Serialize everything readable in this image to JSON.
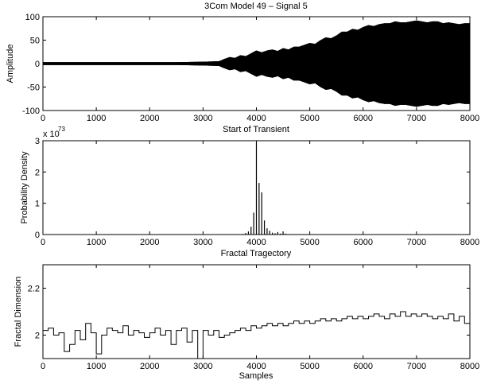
{
  "chart_data": [
    {
      "type": "line",
      "title": "3Com Model 49 – Signal 5",
      "xlabel": "Start of Transient",
      "ylabel": "Amplitude",
      "xlim": [
        0,
        8000
      ],
      "ylim": [
        -100,
        100
      ],
      "xticks": [
        0,
        1000,
        2000,
        3000,
        4000,
        5000,
        6000,
        7000,
        8000
      ],
      "yticks": [
        -100,
        -50,
        0,
        50,
        100
      ],
      "grid": false,
      "series": [
        {
          "description": "signal envelope (+/- amplitude)",
          "x": [
            0,
            500,
            1000,
            1500,
            2000,
            2500,
            3000,
            3300,
            3400,
            3500,
            3600,
            3700,
            3800,
            3900,
            4000,
            4100,
            4200,
            4300,
            4400,
            4500,
            4600,
            4700,
            4800,
            4900,
            5000,
            5100,
            5200,
            5300,
            5400,
            5500,
            5600,
            5700,
            5800,
            5900,
            6000,
            6100,
            6200,
            6300,
            6400,
            6500,
            6600,
            6700,
            6800,
            6900,
            7000,
            7100,
            7200,
            7300,
            7400,
            7500,
            7600,
            7700,
            7800,
            7900,
            8000
          ],
          "upper": [
            3,
            3,
            3,
            3,
            3,
            3,
            4,
            5,
            10,
            14,
            12,
            18,
            16,
            22,
            28,
            24,
            28,
            30,
            27,
            33,
            30,
            36,
            36,
            40,
            44,
            42,
            50,
            56,
            54,
            60,
            68,
            68,
            74,
            72,
            78,
            82,
            80,
            84,
            86,
            86,
            90,
            88,
            88,
            90,
            92,
            90,
            88,
            90,
            90,
            86,
            88,
            86,
            84,
            86,
            86
          ],
          "lower": [
            -3,
            -3,
            -3,
            -3,
            -3,
            -3,
            -4,
            -5,
            -10,
            -14,
            -12,
            -18,
            -16,
            -22,
            -28,
            -24,
            -28,
            -30,
            -27,
            -33,
            -30,
            -36,
            -36,
            -40,
            -44,
            -42,
            -50,
            -56,
            -54,
            -60,
            -68,
            -68,
            -74,
            -72,
            -78,
            -82,
            -80,
            -84,
            -86,
            -86,
            -90,
            -88,
            -88,
            -90,
            -92,
            -90,
            -88,
            -90,
            -90,
            -86,
            -88,
            -86,
            -84,
            -86,
            -86
          ]
        }
      ]
    },
    {
      "type": "bar",
      "xlabel": "Fractal Tragectory",
      "ylabel": "Probability Density",
      "exponent_label": "x 10",
      "exponent_value": "73",
      "xlim": [
        0,
        8000
      ],
      "ylim": [
        0,
        3
      ],
      "xticks": [
        0,
        1000,
        2000,
        3000,
        4000,
        5000,
        6000,
        7000,
        8000
      ],
      "yticks": [
        0,
        1,
        2,
        3
      ],
      "grid": false,
      "x": [
        3750,
        3800,
        3850,
        3900,
        3950,
        4000,
        4050,
        4100,
        4150,
        4200,
        4250,
        4300,
        4350,
        4400,
        4450,
        4500,
        4550
      ],
      "values": [
        0.02,
        0.05,
        0.1,
        0.25,
        0.7,
        2.95,
        1.65,
        1.35,
        0.45,
        0.2,
        0.12,
        0.06,
        0.04,
        0.08,
        0.03,
        0.1,
        0.03
      ]
    },
    {
      "type": "line",
      "xlabel": "Samples",
      "ylabel": "Fractal Dimension",
      "xlim": [
        0,
        8000
      ],
      "ylim": [
        1.9,
        2.3
      ],
      "xticks": [
        0,
        1000,
        2000,
        3000,
        4000,
        5000,
        6000,
        7000,
        8000
      ],
      "yticks": [
        2,
        2.2
      ],
      "grid": false,
      "series": [
        {
          "step": true,
          "x": [
            0,
            100,
            200,
            300,
            400,
            500,
            600,
            700,
            800,
            900,
            1000,
            1100,
            1200,
            1300,
            1400,
            1500,
            1600,
            1700,
            1800,
            1900,
            2000,
            2100,
            2200,
            2300,
            2400,
            2500,
            2600,
            2700,
            2800,
            2900,
            3000,
            3100,
            3200,
            3300,
            3400,
            3500,
            3600,
            3700,
            3800,
            3900,
            4000,
            4100,
            4200,
            4300,
            4400,
            4500,
            4600,
            4700,
            4800,
            4900,
            5000,
            5100,
            5200,
            5300,
            5400,
            5500,
            5600,
            5700,
            5800,
            5900,
            6000,
            6100,
            6200,
            6300,
            6400,
            6500,
            6600,
            6700,
            6800,
            6900,
            7000,
            7100,
            7200,
            7300,
            7400,
            7500,
            7600,
            7700,
            7800,
            7900,
            8000
          ],
          "y": [
            2.02,
            2.03,
            2.0,
            2.01,
            1.93,
            1.96,
            2.02,
            1.98,
            2.05,
            2.01,
            1.92,
            2.0,
            2.03,
            2.02,
            2.01,
            2.04,
            2.0,
            2.02,
            2.01,
            1.99,
            2.01,
            2.03,
            2.0,
            2.02,
            1.96,
            2.02,
            2.03,
            1.97,
            2.02,
            1.9,
            2.02,
            2.0,
            2.02,
            1.99,
            2.0,
            2.01,
            2.02,
            2.03,
            2.02,
            2.04,
            2.03,
            2.04,
            2.05,
            2.04,
            2.05,
            2.04,
            2.05,
            2.06,
            2.05,
            2.06,
            2.05,
            2.06,
            2.07,
            2.06,
            2.07,
            2.06,
            2.07,
            2.08,
            2.07,
            2.08,
            2.07,
            2.08,
            2.09,
            2.08,
            2.07,
            2.09,
            2.08,
            2.1,
            2.08,
            2.09,
            2.08,
            2.09,
            2.08,
            2.07,
            2.08,
            2.07,
            2.09,
            2.06,
            2.08,
            2.05,
            2.07
          ]
        }
      ]
    }
  ]
}
